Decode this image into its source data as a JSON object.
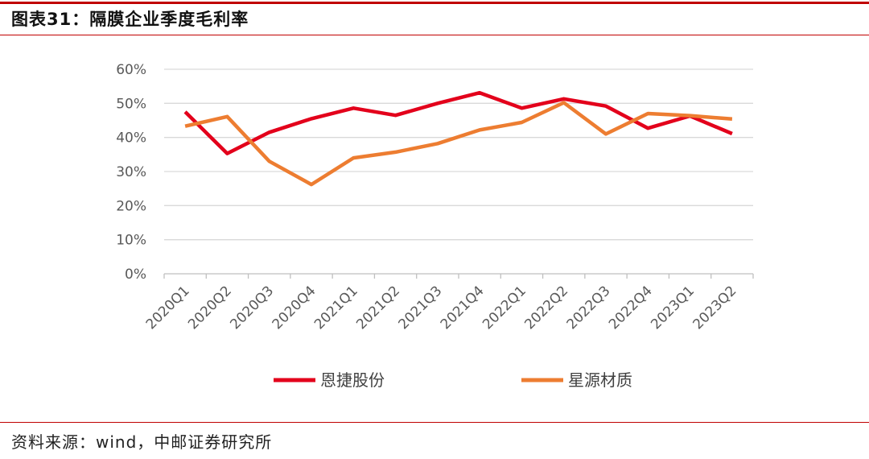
{
  "figure": {
    "title": "图表31：隔膜企业季度毛利率",
    "source": "资料来源：wind，中邮证券研究所"
  },
  "colors": {
    "accent_rule": "#c00000",
    "grid": "#d9d9d9",
    "axis_text": "#595959"
  },
  "chart_data": {
    "type": "line",
    "title": "",
    "xlabel": "",
    "ylabel": "",
    "categories": [
      "2020Q1",
      "2020Q2",
      "2020Q3",
      "2020Q4",
      "2021Q1",
      "2021Q2",
      "2021Q3",
      "2021Q4",
      "2022Q1",
      "2022Q2",
      "2022Q3",
      "2022Q4",
      "2023Q1",
      "2023Q2"
    ],
    "ylim": [
      0,
      60
    ],
    "yticks": [
      0,
      10,
      20,
      30,
      40,
      50,
      60
    ],
    "ytick_labels": [
      "0%",
      "10%",
      "20%",
      "30%",
      "40%",
      "50%",
      "60%"
    ],
    "grid": true,
    "legend_position": "bottom",
    "series": [
      {
        "name": "恩捷股份",
        "color": "#e3001b",
        "values": [
          47.5,
          35.3,
          41.5,
          45.5,
          48.6,
          46.5,
          50.0,
          53.1,
          48.6,
          51.3,
          49.2,
          42.7,
          46.3,
          41.1
        ]
      },
      {
        "name": "星源材质",
        "color": "#ed7d31",
        "values": [
          43.3,
          46.1,
          33.0,
          26.2,
          34.0,
          35.7,
          38.2,
          42.2,
          44.4,
          50.2,
          41.0,
          47.0,
          46.4,
          45.4
        ]
      }
    ]
  }
}
